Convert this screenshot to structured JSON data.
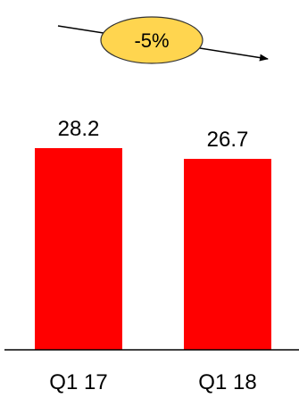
{
  "chart_data": {
    "type": "bar",
    "categories": [
      "Q1 17",
      "Q1 18"
    ],
    "values": [
      28.2,
      26.7
    ],
    "value_labels": [
      "28.2",
      "26.7"
    ],
    "ylim": [
      0,
      30
    ],
    "grid": false,
    "bar_color": "#ff0000",
    "annotation": {
      "text": "-5%",
      "fill": "#ffd54f",
      "stroke": "#333333"
    }
  }
}
